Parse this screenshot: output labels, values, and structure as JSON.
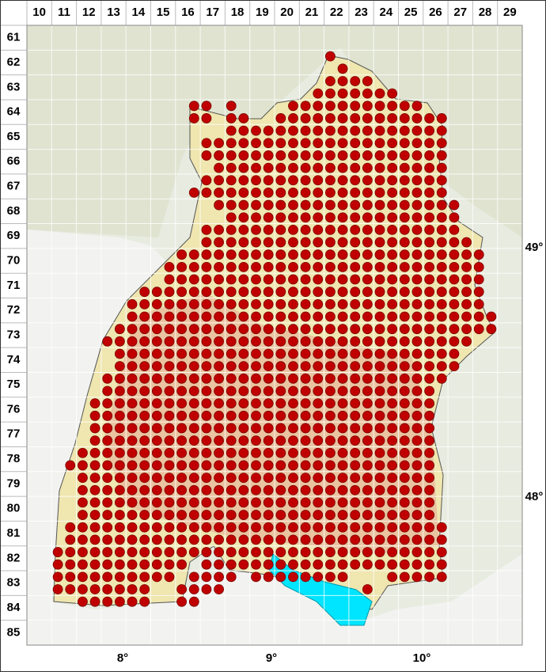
{
  "map": {
    "columns": [
      "10",
      "11",
      "12",
      "13",
      "14",
      "15",
      "16",
      "17",
      "18",
      "19",
      "20",
      "21",
      "22",
      "23",
      "24",
      "25",
      "26",
      "27",
      "28",
      "29"
    ],
    "rows": [
      "61",
      "62",
      "63",
      "64",
      "65",
      "66",
      "67",
      "68",
      "69",
      "70",
      "71",
      "72",
      "73",
      "74",
      "75",
      "76",
      "77",
      "78",
      "79",
      "80",
      "81",
      "82",
      "83",
      "84",
      "85"
    ],
    "longitudes": [
      "8°",
      "9°",
      "10°"
    ],
    "latitudes": [
      "49°",
      "48°"
    ],
    "occurrences": [
      [
        2,
        24,
        24
      ],
      [
        3,
        25,
        25
      ],
      [
        4,
        24,
        27
      ],
      [
        5,
        23,
        29
      ],
      [
        6,
        13,
        14
      ],
      [
        6,
        16,
        16
      ],
      [
        6,
        21,
        31
      ],
      [
        7,
        13,
        14
      ],
      [
        7,
        16,
        17
      ],
      [
        7,
        20,
        33
      ],
      [
        8,
        16,
        33
      ],
      [
        9,
        14,
        33
      ],
      [
        10,
        14,
        33
      ],
      [
        11,
        15,
        33
      ],
      [
        12,
        14,
        33
      ],
      [
        13,
        13,
        33
      ],
      [
        14,
        15,
        34
      ],
      [
        15,
        16,
        34
      ],
      [
        16,
        14,
        34
      ],
      [
        17,
        14,
        35
      ],
      [
        18,
        12,
        36
      ],
      [
        19,
        11,
        36
      ],
      [
        20,
        11,
        36
      ],
      [
        21,
        9,
        36
      ],
      [
        22,
        8,
        36
      ],
      [
        23,
        8,
        37
      ],
      [
        24,
        7,
        37
      ],
      [
        25,
        6,
        35
      ],
      [
        26,
        7,
        34
      ],
      [
        27,
        7,
        34
      ],
      [
        28,
        6,
        33
      ],
      [
        29,
        6,
        32
      ],
      [
        30,
        5,
        32
      ],
      [
        31,
        5,
        32
      ],
      [
        32,
        5,
        32
      ],
      [
        33,
        5,
        32
      ],
      [
        34,
        4,
        32
      ],
      [
        35,
        3,
        32
      ],
      [
        36,
        4,
        32
      ],
      [
        37,
        4,
        32
      ],
      [
        38,
        4,
        32
      ],
      [
        39,
        4,
        32
      ],
      [
        40,
        3,
        33
      ],
      [
        41,
        3,
        33
      ],
      [
        42,
        2,
        33
      ],
      [
        43,
        2,
        12
      ],
      [
        43,
        14,
        33
      ],
      [
        44,
        2,
        11
      ],
      [
        44,
        13,
        16
      ],
      [
        44,
        18,
        25
      ],
      [
        44,
        29,
        33
      ],
      [
        45,
        2,
        9
      ],
      [
        45,
        12,
        15
      ],
      [
        45,
        27,
        27
      ],
      [
        46,
        4,
        9
      ],
      [
        46,
        12,
        13
      ]
    ]
  }
}
